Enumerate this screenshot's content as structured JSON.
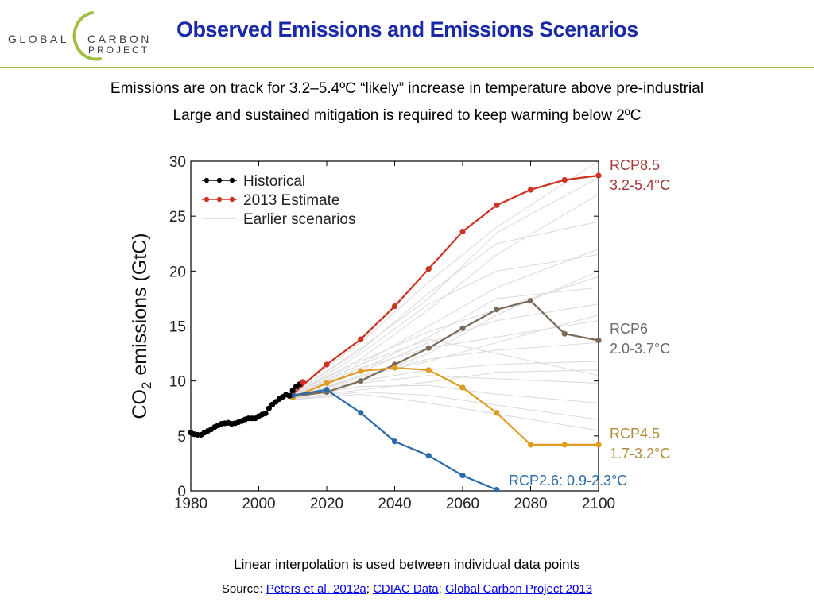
{
  "logo": {
    "word_global": "GLOBAL",
    "word_carbon": "CARBON",
    "word_project": "PROJECT",
    "arc_color": "#9fbf45",
    "text_color": "#3c3c3c"
  },
  "header": {
    "title": "Observed Emissions and Emissions Scenarios",
    "title_color": "#1a2aa6",
    "rule_color": "#9fbf45"
  },
  "subtitles": {
    "line1": "Emissions are on track for 3.2–5.4ºC “likely” increase in temperature above pre-industrial",
    "line2": "Large and sustained mitigation is required to keep warming below 2ºC"
  },
  "chart_data": {
    "type": "line",
    "ylabel_prefix": "CO",
    "ylabel_subscript": "2",
    "ylabel_suffix": "emissions (GtC)",
    "xlim": [
      1980,
      2100
    ],
    "ylim": [
      0,
      30
    ],
    "xticks": [
      1980,
      2000,
      2020,
      2040,
      2060,
      2080,
      2100
    ],
    "yticks": [
      0,
      5,
      10,
      15,
      20,
      25,
      30
    ],
    "grid": false,
    "legend_position": "top-left",
    "legend": [
      {
        "label": "Historical",
        "color": "#000000",
        "marker": true
      },
      {
        "label": "2013 Estimate",
        "color": "#cc3322",
        "marker": true
      },
      {
        "label": "Earlier scenarios",
        "color": "#d8d8d8",
        "marker": false
      }
    ],
    "historical": {
      "name": "Historical",
      "color": "#000000",
      "x": [
        1980,
        1981,
        1982,
        1983,
        1984,
        1985,
        1986,
        1987,
        1988,
        1989,
        1990,
        1991,
        1992,
        1993,
        1994,
        1995,
        1996,
        1997,
        1998,
        1999,
        2000,
        2001,
        2002,
        2003,
        2004,
        2005,
        2006,
        2007,
        2008,
        2009,
        2010,
        2011,
        2012
      ],
      "y": [
        5.3,
        5.15,
        5.1,
        5.1,
        5.3,
        5.45,
        5.6,
        5.8,
        5.95,
        6.1,
        6.15,
        6.2,
        6.1,
        6.15,
        6.25,
        6.35,
        6.5,
        6.6,
        6.6,
        6.6,
        6.8,
        6.95,
        7.05,
        7.5,
        7.85,
        8.1,
        8.35,
        8.55,
        8.75,
        8.65,
        9.15,
        9.5,
        9.7
      ]
    },
    "estimate_2013": {
      "name": "2013 Estimate",
      "color": "#cc3322",
      "x": [
        2013
      ],
      "y": [
        9.9
      ]
    },
    "scenarios": [
      {
        "name": "RCP8.5",
        "label_line2": "3.2-5.4°C",
        "color": "#cc3322",
        "label_color": "#a23a3a",
        "x": [
          2010,
          2020,
          2030,
          2040,
          2050,
          2060,
          2070,
          2080,
          2090,
          2100
        ],
        "y": [
          8.8,
          11.5,
          13.8,
          16.8,
          20.2,
          23.6,
          26.0,
          27.4,
          28.3,
          28.7
        ]
      },
      {
        "name": "RCP6",
        "label_line2": "2.0-3.7°C",
        "color": "#7a6a5a",
        "label_color": "#6b6b6b",
        "x": [
          2010,
          2020,
          2030,
          2040,
          2050,
          2060,
          2070,
          2080,
          2090,
          2100
        ],
        "y": [
          8.6,
          9.0,
          10.0,
          11.5,
          13.0,
          14.8,
          16.5,
          17.3,
          14.3,
          13.7
        ]
      },
      {
        "name": "RCP4.5",
        "label_line2": "1.7-3.2°C",
        "color": "#e09b22",
        "label_color": "#b08a3c",
        "x": [
          2010,
          2020,
          2030,
          2040,
          2050,
          2060,
          2070,
          2080,
          2090,
          2100
        ],
        "y": [
          8.5,
          9.8,
          10.9,
          11.2,
          11.0,
          9.4,
          7.1,
          4.2,
          4.2,
          4.2
        ]
      },
      {
        "name": "RCP2.6: 0.9-2.3°C",
        "label_line2": "",
        "color": "#2a6aa8",
        "label_color": "#2a6aa8",
        "x": [
          2010,
          2020,
          2030,
          2040,
          2050,
          2060,
          2070
        ],
        "y": [
          8.7,
          9.2,
          7.1,
          4.5,
          3.2,
          1.4,
          0.1
        ]
      }
    ],
    "earlier_scenarios_color": "#dcdcdc",
    "earlier_scenarios": [
      {
        "x": [
          2010,
          2030,
          2050,
          2070,
          2100
        ],
        "y": [
          9.0,
          13.5,
          19.0,
          24.0,
          30.0
        ]
      },
      {
        "x": [
          2010,
          2030,
          2050,
          2070,
          2100
        ],
        "y": [
          8.8,
          12.0,
          16.5,
          21.5,
          27.0
        ]
      },
      {
        "x": [
          2010,
          2030,
          2050,
          2070,
          2100
        ],
        "y": [
          8.9,
          12.8,
          18.0,
          22.5,
          24.5
        ]
      },
      {
        "x": [
          2010,
          2030,
          2050,
          2070,
          2100
        ],
        "y": [
          8.7,
          11.5,
          15.0,
          18.5,
          22.0
        ]
      },
      {
        "x": [
          2010,
          2030,
          2050,
          2070,
          2100
        ],
        "y": [
          8.8,
          11.8,
          14.5,
          16.5,
          19.5
        ]
      },
      {
        "x": [
          2010,
          2030,
          2050,
          2070,
          2100
        ],
        "y": [
          8.6,
          10.8,
          13.5,
          15.5,
          17.0
        ]
      },
      {
        "x": [
          2010,
          2030,
          2050,
          2070,
          2100
        ],
        "y": [
          8.7,
          11.2,
          13.0,
          14.0,
          15.5
        ]
      },
      {
        "x": [
          2010,
          2030,
          2050,
          2070,
          2100
        ],
        "y": [
          8.5,
          10.5,
          12.0,
          12.8,
          13.5
        ]
      },
      {
        "x": [
          2010,
          2030,
          2050,
          2070,
          2100
        ],
        "y": [
          8.6,
          10.0,
          11.0,
          11.5,
          11.8
        ]
      },
      {
        "x": [
          2010,
          2030,
          2050,
          2070,
          2100
        ],
        "y": [
          8.4,
          9.8,
          10.5,
          10.2,
          9.8
        ]
      },
      {
        "x": [
          2010,
          2030,
          2050,
          2070,
          2100
        ],
        "y": [
          8.5,
          9.5,
          9.6,
          8.8,
          8.0
        ]
      },
      {
        "x": [
          2010,
          2030,
          2050,
          2070,
          2100
        ],
        "y": [
          8.3,
          9.0,
          8.7,
          7.8,
          6.5
        ]
      },
      {
        "x": [
          2010,
          2030,
          2050,
          2070,
          2100
        ],
        "y": [
          8.4,
          9.2,
          9.9,
          10.8,
          11.0
        ]
      },
      {
        "x": [
          2010,
          2030,
          2050,
          2070,
          2100
        ],
        "y": [
          8.6,
          10.2,
          12.5,
          16.0,
          20.0
        ]
      },
      {
        "x": [
          2010,
          2030,
          2050,
          2070,
          2100
        ],
        "y": [
          8.7,
          12.5,
          17.0,
          20.0,
          21.5
        ]
      },
      {
        "x": [
          2010,
          2030,
          2050,
          2070,
          2100
        ],
        "y": [
          8.8,
          13.0,
          17.5,
          23.5,
          28.5
        ]
      },
      {
        "x": [
          2010,
          2030,
          2050,
          2070,
          2100
        ],
        "y": [
          8.5,
          10.4,
          11.8,
          13.5,
          16.0
        ]
      },
      {
        "x": [
          2010,
          2030,
          2050,
          2070,
          2100
        ],
        "y": [
          8.6,
          11.0,
          14.0,
          17.5,
          18.5
        ]
      },
      {
        "x": [
          2010,
          2030,
          2050,
          2070,
          2100
        ],
        "y": [
          8.3,
          8.8,
          8.0,
          7.0,
          5.5
        ]
      },
      {
        "x": [
          2010,
          2030,
          2050,
          2070,
          2100
        ],
        "y": [
          8.7,
          11.5,
          13.8,
          12.5,
          10.5
        ]
      }
    ]
  },
  "footer": {
    "note": "Linear interpolation is used between individual data points",
    "source_prefix": "Source: ",
    "links": [
      "Peters et al. 2012a",
      "CDIAC Data",
      "Global Carbon Project 2013"
    ],
    "separator": "; "
  }
}
